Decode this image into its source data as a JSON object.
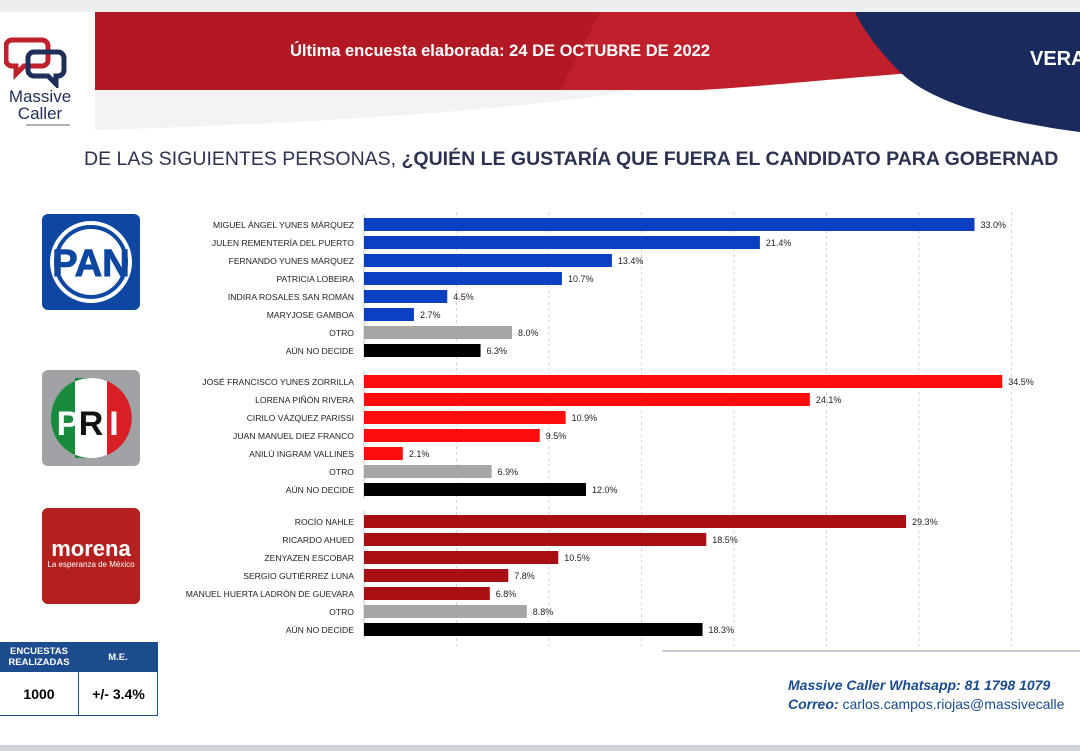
{
  "header": {
    "brand_line1": "Massive",
    "brand_line2": "Caller",
    "survey_date": "Última encuesta elaborada: 24 DE OCTUBRE DE 2022",
    "state": "VERA"
  },
  "question": {
    "regular": "DE LAS SIGUIENTES PERSONAS, ",
    "bold": "¿QUIÉN LE GUSTARÍA QUE FUERA EL CANDIDATO PARA GOBERNAD"
  },
  "logos": {
    "pan": "PAN",
    "pri_letters": [
      "P",
      "R",
      "I"
    ],
    "morena": "morena",
    "morena_tagline": "La esperanza de México"
  },
  "colors": {
    "pan": "#0b40c3",
    "pri": "#ff0d0d",
    "morena": "#a80f12",
    "otro": "#a6a6a6",
    "undecided": "#000000",
    "header_red": "#c01f2c",
    "header_navy": "#1b2a5c"
  },
  "chart_data": {
    "type": "bar",
    "orientation": "horizontal",
    "title": "DE LAS SIGUIENTES PERSONAS, ¿QUIÉN LE GUSTARÍA QUE FUERA EL CANDIDATO PARA GOBERNAD",
    "xlim": [
      0,
      36
    ],
    "grid": true,
    "groups": [
      {
        "party": "PAN",
        "bars": [
          {
            "label": "MIGUEL ÁNGEL YUNES MÁRQUEZ",
            "value": 33.0,
            "text": "33.0%",
            "color_key": "pan"
          },
          {
            "label": "JULEN REMENTERÍA DEL PUERTO",
            "value": 21.4,
            "text": "21.4%",
            "color_key": "pan"
          },
          {
            "label": "FERNANDO YUNES MÁRQUEZ",
            "value": 13.4,
            "text": "13.4%",
            "color_key": "pan"
          },
          {
            "label": "PATRICIA LOBEIRA",
            "value": 10.7,
            "text": "10.7%",
            "color_key": "pan"
          },
          {
            "label": "INDIRA ROSALES SAN ROMÁN",
            "value": 4.5,
            "text": "4.5%",
            "color_key": "pan"
          },
          {
            "label": "MARYJOSE GAMBOA",
            "value": 2.7,
            "text": "2.7%",
            "color_key": "pan"
          },
          {
            "label": "OTRO",
            "value": 8.0,
            "text": "8.0%",
            "color_key": "otro"
          },
          {
            "label": "AÚN NO DECIDE",
            "value": 6.3,
            "text": "6.3%",
            "color_key": "undecided"
          }
        ]
      },
      {
        "party": "PRI",
        "bars": [
          {
            "label": "JOSÉ FRANCISCO YUNES ZORRILLA",
            "value": 34.5,
            "text": "34.5%",
            "color_key": "pri"
          },
          {
            "label": "LORENA PIÑÓN RIVERA",
            "value": 24.1,
            "text": "24.1%",
            "color_key": "pri"
          },
          {
            "label": "CIRILO VÁZQUEZ PARISSI",
            "value": 10.9,
            "text": "10.9%",
            "color_key": "pri"
          },
          {
            "label": "JUAN MANUEL DIEZ FRANCO",
            "value": 9.5,
            "text": "9.5%",
            "color_key": "pri"
          },
          {
            "label": "ANILÚ INGRAM VALLINES",
            "value": 2.1,
            "text": "2.1%",
            "color_key": "pri"
          },
          {
            "label": "OTRO",
            "value": 6.9,
            "text": "6.9%",
            "color_key": "otro"
          },
          {
            "label": "AÚN NO DECIDE",
            "value": 12.0,
            "text": "12.0%",
            "color_key": "undecided"
          }
        ]
      },
      {
        "party": "MORENA",
        "bars": [
          {
            "label": "ROCÍO NAHLE",
            "value": 29.3,
            "text": "29.3%",
            "color_key": "morena"
          },
          {
            "label": "RICARDO AHUED",
            "value": 18.5,
            "text": "18.5%",
            "color_key": "morena"
          },
          {
            "label": "ZENYAZEN ESCOBAR",
            "value": 10.5,
            "text": "10.5%",
            "color_key": "morena"
          },
          {
            "label": "SERGIO GUTIÉRREZ LUNA",
            "value": 7.8,
            "text": "7.8%",
            "color_key": "morena"
          },
          {
            "label": "MANUEL HUERTA LADRÓN DE GUEVARA",
            "value": 6.8,
            "text": "6.8%",
            "color_key": "morena"
          },
          {
            "label": "OTRO",
            "value": 8.8,
            "text": "8.8%",
            "color_key": "otro"
          },
          {
            "label": "AÚN NO DECIDE",
            "value": 18.3,
            "text": "18.3%",
            "color_key": "undecided"
          }
        ]
      }
    ]
  },
  "survey_info": {
    "count_header": "ENCUESTAS REALIZADAS",
    "count_value": "1000",
    "margin_header": "M.E.",
    "margin_value": "+/- 3.4%"
  },
  "contact": {
    "whatsapp_label": "Massive Caller Whatsapp:",
    "whatsapp_number": "81 1798 1079",
    "email_label": "Correo:",
    "email": "carlos.campos.riojas@massivecalle"
  }
}
